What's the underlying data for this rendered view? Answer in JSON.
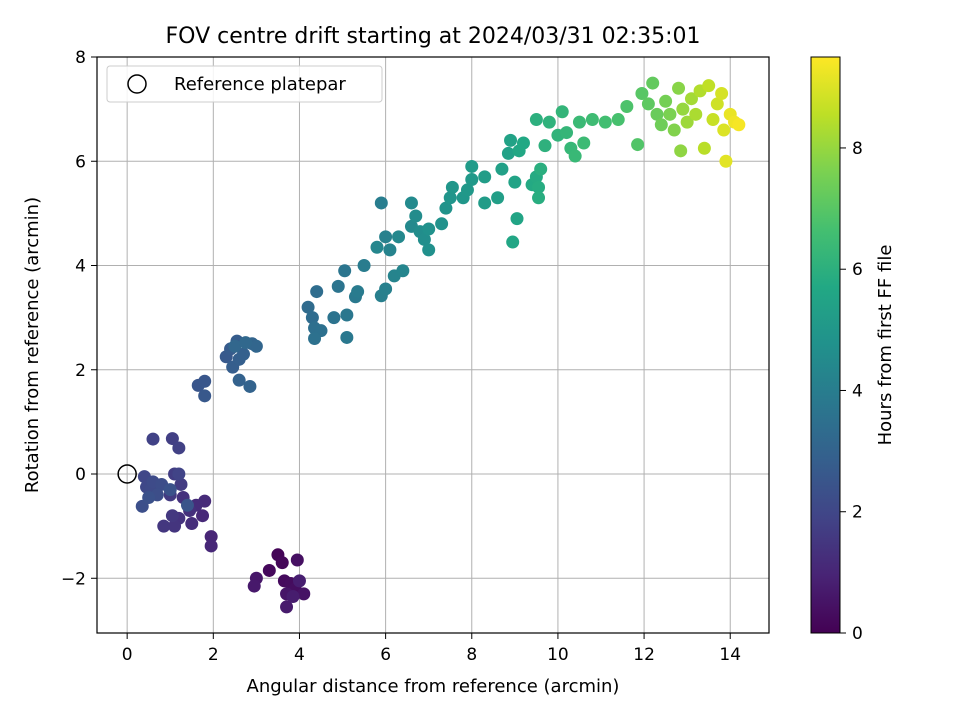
{
  "chart_data": {
    "type": "scatter",
    "title": "FOV centre drift starting at 2024/03/31 02:35:01",
    "xlabel": "Angular distance from reference (arcmin)",
    "ylabel": "Rotation from reference (arcmin)",
    "xlim": [
      -0.7,
      14.9
    ],
    "ylim": [
      -3.05,
      8.0
    ],
    "xticks": [
      0,
      2,
      4,
      6,
      8,
      10,
      12,
      14
    ],
    "yticks": [
      -2,
      0,
      2,
      4,
      6,
      8
    ],
    "grid": true,
    "legend": {
      "placement": "top-left",
      "entries": [
        "Reference platepar"
      ]
    },
    "reference_point": {
      "x": 0,
      "y": 0
    },
    "colorbar": {
      "label": "Hours from first FF file",
      "range": [
        0,
        9.5
      ],
      "ticks": [
        0,
        2,
        4,
        6,
        8
      ],
      "colormap": "viridis"
    },
    "points": [
      {
        "x": 3.5,
        "y": -1.55,
        "h": 0.1
      },
      {
        "x": 3.6,
        "y": -1.7,
        "h": 0.15
      },
      {
        "x": 3.3,
        "y": -1.85,
        "h": 0.2
      },
      {
        "x": 3.65,
        "y": -2.05,
        "h": 0.25
      },
      {
        "x": 3.8,
        "y": -2.1,
        "h": 0.3
      },
      {
        "x": 3.9,
        "y": -2.2,
        "h": 0.35
      },
      {
        "x": 3.95,
        "y": -1.65,
        "h": 0.4
      },
      {
        "x": 4.1,
        "y": -2.3,
        "h": 0.5
      },
      {
        "x": 3.7,
        "y": -2.3,
        "h": 0.55
      },
      {
        "x": 3.0,
        "y": -2.0,
        "h": 0.6
      },
      {
        "x": 2.95,
        "y": -2.15,
        "h": 0.65
      },
      {
        "x": 3.7,
        "y": -2.55,
        "h": 0.7
      },
      {
        "x": 3.85,
        "y": -2.35,
        "h": 0.75
      },
      {
        "x": 4.0,
        "y": -2.05,
        "h": 0.8
      },
      {
        "x": 1.95,
        "y": -1.2,
        "h": 1.0
      },
      {
        "x": 1.95,
        "y": -1.38,
        "h": 1.05
      },
      {
        "x": 1.75,
        "y": -0.8,
        "h": 1.1
      },
      {
        "x": 1.8,
        "y": -0.52,
        "h": 1.15
      },
      {
        "x": 1.6,
        "y": -0.6,
        "h": 1.2
      },
      {
        "x": 1.5,
        "y": -0.95,
        "h": 1.25
      },
      {
        "x": 1.45,
        "y": -0.7,
        "h": 1.3
      },
      {
        "x": 1.3,
        "y": -0.45,
        "h": 1.35
      },
      {
        "x": 1.2,
        "y": -0.85,
        "h": 1.4
      },
      {
        "x": 1.1,
        "y": -1.0,
        "h": 1.45
      },
      {
        "x": 0.85,
        "y": -1.0,
        "h": 1.5
      },
      {
        "x": 1.05,
        "y": -0.8,
        "h": 1.55
      },
      {
        "x": 1.0,
        "y": -0.4,
        "h": 1.6
      },
      {
        "x": 1.25,
        "y": -0.2,
        "h": 1.65
      },
      {
        "x": 1.1,
        "y": 0.0,
        "h": 1.7
      },
      {
        "x": 1.05,
        "y": 0.68,
        "h": 1.75
      },
      {
        "x": 1.2,
        "y": 0.5,
        "h": 1.8
      },
      {
        "x": 0.6,
        "y": 0.67,
        "h": 1.85
      },
      {
        "x": 1.2,
        "y": 0.0,
        "h": 1.9
      },
      {
        "x": 0.65,
        "y": -0.35,
        "h": 1.95
      },
      {
        "x": 0.4,
        "y": -0.05,
        "h": 2.0
      },
      {
        "x": 0.45,
        "y": -0.25,
        "h": 2.05
      },
      {
        "x": 0.55,
        "y": -0.3,
        "h": 2.1
      },
      {
        "x": 0.6,
        "y": -0.15,
        "h": 2.15
      },
      {
        "x": 0.8,
        "y": -0.2,
        "h": 2.2
      },
      {
        "x": 0.7,
        "y": -0.4,
        "h": 2.25
      },
      {
        "x": 0.35,
        "y": -0.62,
        "h": 2.3
      },
      {
        "x": 0.5,
        "y": -0.45,
        "h": 2.35
      },
      {
        "x": 1.0,
        "y": -0.3,
        "h": 2.4
      },
      {
        "x": 1.4,
        "y": -0.6,
        "h": 2.45
      },
      {
        "x": 1.65,
        "y": 1.7,
        "h": 2.5
      },
      {
        "x": 1.8,
        "y": 1.78,
        "h": 2.55
      },
      {
        "x": 1.8,
        "y": 1.5,
        "h": 2.6
      },
      {
        "x": 2.3,
        "y": 2.25,
        "h": 2.65
      },
      {
        "x": 2.4,
        "y": 2.4,
        "h": 2.7
      },
      {
        "x": 2.55,
        "y": 2.55,
        "h": 2.75
      },
      {
        "x": 2.45,
        "y": 2.05,
        "h": 2.8
      },
      {
        "x": 2.6,
        "y": 2.2,
        "h": 2.85
      },
      {
        "x": 2.7,
        "y": 2.3,
        "h": 2.9
      },
      {
        "x": 2.6,
        "y": 1.8,
        "h": 2.95
      },
      {
        "x": 2.85,
        "y": 1.68,
        "h": 3.0
      },
      {
        "x": 2.9,
        "y": 2.5,
        "h": 3.05
      },
      {
        "x": 3.0,
        "y": 2.45,
        "h": 3.1
      },
      {
        "x": 2.5,
        "y": 2.45,
        "h": 3.15
      },
      {
        "x": 2.75,
        "y": 2.52,
        "h": 3.2
      },
      {
        "x": 4.2,
        "y": 3.2,
        "h": 3.3
      },
      {
        "x": 4.3,
        "y": 3.0,
        "h": 3.35
      },
      {
        "x": 4.4,
        "y": 3.5,
        "h": 3.4
      },
      {
        "x": 4.35,
        "y": 2.8,
        "h": 3.45
      },
      {
        "x": 4.5,
        "y": 2.75,
        "h": 3.5
      },
      {
        "x": 4.35,
        "y": 2.6,
        "h": 3.55
      },
      {
        "x": 4.8,
        "y": 3.0,
        "h": 3.6
      },
      {
        "x": 4.9,
        "y": 3.6,
        "h": 3.65
      },
      {
        "x": 5.05,
        "y": 3.9,
        "h": 3.7
      },
      {
        "x": 5.1,
        "y": 3.05,
        "h": 3.75
      },
      {
        "x": 5.1,
        "y": 2.62,
        "h": 3.8
      },
      {
        "x": 5.3,
        "y": 3.4,
        "h": 3.85
      },
      {
        "x": 5.35,
        "y": 3.5,
        "h": 3.9
      },
      {
        "x": 5.5,
        "y": 4.0,
        "h": 3.95
      },
      {
        "x": 5.9,
        "y": 5.2,
        "h": 4.0
      },
      {
        "x": 5.9,
        "y": 3.42,
        "h": 4.05
      },
      {
        "x": 6.0,
        "y": 3.55,
        "h": 4.1
      },
      {
        "x": 6.0,
        "y": 4.55,
        "h": 4.15
      },
      {
        "x": 6.1,
        "y": 4.3,
        "h": 4.2
      },
      {
        "x": 6.2,
        "y": 3.8,
        "h": 4.25
      },
      {
        "x": 6.4,
        "y": 3.9,
        "h": 4.3
      },
      {
        "x": 5.8,
        "y": 4.35,
        "h": 4.35
      },
      {
        "x": 6.3,
        "y": 4.55,
        "h": 4.4
      },
      {
        "x": 6.6,
        "y": 4.75,
        "h": 4.45
      },
      {
        "x": 6.6,
        "y": 5.2,
        "h": 4.5
      },
      {
        "x": 6.7,
        "y": 4.95,
        "h": 4.55
      },
      {
        "x": 6.8,
        "y": 4.65,
        "h": 4.6
      },
      {
        "x": 6.9,
        "y": 4.5,
        "h": 4.65
      },
      {
        "x": 7.0,
        "y": 4.3,
        "h": 4.7
      },
      {
        "x": 7.0,
        "y": 4.7,
        "h": 4.75
      },
      {
        "x": 7.3,
        "y": 4.8,
        "h": 4.8
      },
      {
        "x": 7.4,
        "y": 5.1,
        "h": 4.85
      },
      {
        "x": 7.5,
        "y": 5.3,
        "h": 4.9
      },
      {
        "x": 7.55,
        "y": 5.5,
        "h": 4.95
      },
      {
        "x": 7.8,
        "y": 5.3,
        "h": 5.0
      },
      {
        "x": 7.9,
        "y": 5.45,
        "h": 5.05
      },
      {
        "x": 8.0,
        "y": 5.65,
        "h": 5.1
      },
      {
        "x": 8.0,
        "y": 5.9,
        "h": 5.15
      },
      {
        "x": 8.3,
        "y": 5.2,
        "h": 5.2
      },
      {
        "x": 8.3,
        "y": 5.7,
        "h": 5.25
      },
      {
        "x": 8.6,
        "y": 5.3,
        "h": 5.3
      },
      {
        "x": 8.7,
        "y": 5.85,
        "h": 5.35
      },
      {
        "x": 8.85,
        "y": 6.15,
        "h": 5.4
      },
      {
        "x": 8.9,
        "y": 6.4,
        "h": 5.45
      },
      {
        "x": 9.0,
        "y": 5.6,
        "h": 5.5
      },
      {
        "x": 9.05,
        "y": 4.9,
        "h": 5.55
      },
      {
        "x": 8.95,
        "y": 4.45,
        "h": 5.6
      },
      {
        "x": 9.1,
        "y": 6.2,
        "h": 5.65
      },
      {
        "x": 9.2,
        "y": 6.35,
        "h": 5.7
      },
      {
        "x": 9.4,
        "y": 5.55,
        "h": 5.75
      },
      {
        "x": 9.5,
        "y": 5.7,
        "h": 5.8
      },
      {
        "x": 9.55,
        "y": 5.5,
        "h": 5.85
      },
      {
        "x": 9.55,
        "y": 5.3,
        "h": 5.9
      },
      {
        "x": 9.6,
        "y": 5.85,
        "h": 5.95
      },
      {
        "x": 9.5,
        "y": 6.8,
        "h": 6.0
      },
      {
        "x": 9.7,
        "y": 6.3,
        "h": 6.05
      },
      {
        "x": 9.8,
        "y": 6.75,
        "h": 6.1
      },
      {
        "x": 10.0,
        "y": 6.5,
        "h": 6.15
      },
      {
        "x": 10.1,
        "y": 6.95,
        "h": 6.2
      },
      {
        "x": 10.2,
        "y": 6.55,
        "h": 6.25
      },
      {
        "x": 10.3,
        "y": 6.25,
        "h": 6.3
      },
      {
        "x": 10.4,
        "y": 6.1,
        "h": 6.35
      },
      {
        "x": 10.5,
        "y": 6.75,
        "h": 6.4
      },
      {
        "x": 10.6,
        "y": 6.35,
        "h": 6.45
      },
      {
        "x": 10.8,
        "y": 6.8,
        "h": 6.5
      },
      {
        "x": 11.1,
        "y": 6.75,
        "h": 6.6
      },
      {
        "x": 11.4,
        "y": 6.8,
        "h": 6.7
      },
      {
        "x": 11.6,
        "y": 7.05,
        "h": 6.8
      },
      {
        "x": 11.85,
        "y": 6.32,
        "h": 6.9
      },
      {
        "x": 11.95,
        "y": 7.3,
        "h": 7.0
      },
      {
        "x": 12.1,
        "y": 7.1,
        "h": 7.1
      },
      {
        "x": 12.2,
        "y": 7.5,
        "h": 7.2
      },
      {
        "x": 12.3,
        "y": 6.9,
        "h": 7.3
      },
      {
        "x": 12.4,
        "y": 6.7,
        "h": 7.4
      },
      {
        "x": 12.5,
        "y": 7.15,
        "h": 7.5
      },
      {
        "x": 12.6,
        "y": 6.9,
        "h": 7.6
      },
      {
        "x": 12.7,
        "y": 6.6,
        "h": 7.7
      },
      {
        "x": 12.8,
        "y": 7.4,
        "h": 7.8
      },
      {
        "x": 12.85,
        "y": 6.2,
        "h": 7.9
      },
      {
        "x": 12.9,
        "y": 7.0,
        "h": 8.0
      },
      {
        "x": 13.0,
        "y": 6.75,
        "h": 8.1
      },
      {
        "x": 13.1,
        "y": 7.2,
        "h": 8.2
      },
      {
        "x": 13.2,
        "y": 6.9,
        "h": 8.3
      },
      {
        "x": 13.3,
        "y": 7.35,
        "h": 8.4
      },
      {
        "x": 13.4,
        "y": 6.25,
        "h": 8.5
      },
      {
        "x": 13.5,
        "y": 7.45,
        "h": 8.6
      },
      {
        "x": 13.6,
        "y": 6.8,
        "h": 8.7
      },
      {
        "x": 13.7,
        "y": 7.1,
        "h": 8.8
      },
      {
        "x": 13.8,
        "y": 7.3,
        "h": 8.9
      },
      {
        "x": 13.85,
        "y": 6.6,
        "h": 9.0
      },
      {
        "x": 13.9,
        "y": 6.0,
        "h": 9.1
      },
      {
        "x": 14.0,
        "y": 6.9,
        "h": 9.2
      },
      {
        "x": 14.1,
        "y": 6.75,
        "h": 9.3
      },
      {
        "x": 14.2,
        "y": 6.7,
        "h": 9.4
      }
    ]
  }
}
